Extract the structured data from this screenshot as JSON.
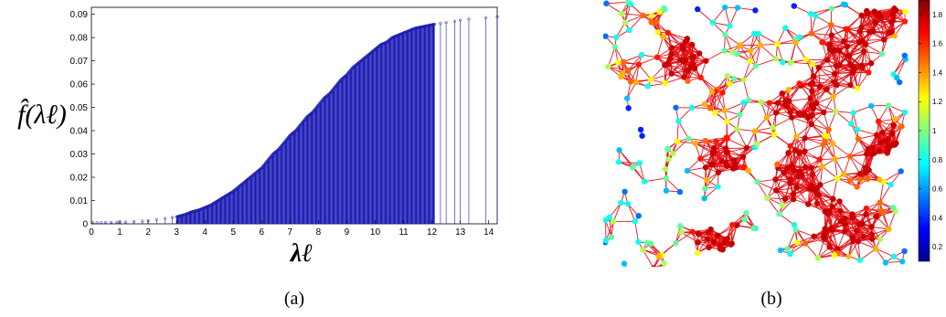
{
  "panels": [
    {
      "caption": "(a)"
    },
    {
      "caption": "(b)"
    }
  ],
  "chart_data": [
    {
      "type": "stem",
      "title": "",
      "xlabel": "λℓ",
      "ylabel": "f̂(λℓ)",
      "xlim": [
        0,
        14.3
      ],
      "ylim": [
        0,
        0.093
      ],
      "xticks": [
        "0",
        "1",
        "2",
        "3",
        "4",
        "5",
        "6",
        "7",
        "8",
        "9",
        "10",
        "11",
        "12",
        "13",
        "14"
      ],
      "yticks": [
        "0",
        "0.01",
        "0.02",
        "0.03",
        "0.04",
        "0.05",
        "0.06",
        "0.07",
        "0.08",
        "0.09"
      ],
      "grid": false,
      "legend": "none",
      "color": "#1a1ab3",
      "series": [
        {
          "x": [
            0,
            0.3,
            0.6,
            0.9,
            1.2,
            1.5,
            1.8,
            2.1,
            2.4,
            2.7,
            3.0,
            3.3,
            3.5,
            3.8,
            4.0,
            4.2,
            4.4,
            4.6,
            4.8,
            5.0,
            5.2,
            5.4,
            5.6,
            5.8,
            6.0,
            6.2,
            6.4,
            6.6,
            6.8,
            7.0,
            7.2,
            7.4,
            7.6,
            7.8,
            8.0,
            8.2,
            8.4,
            8.6,
            8.8,
            9.0,
            9.2,
            9.4,
            9.6,
            9.8,
            10.0,
            10.2,
            10.4,
            10.6,
            10.8,
            11.0,
            11.2,
            11.4,
            11.6,
            11.8,
            12.0,
            12.2,
            12.5,
            12.8,
            13.0,
            13.3,
            13.9,
            14.3
          ],
          "y": [
            0.0005,
            0.0005,
            0.0006,
            0.0007,
            0.0008,
            0.001,
            0.0012,
            0.0015,
            0.002,
            0.0025,
            0.003,
            0.004,
            0.005,
            0.006,
            0.007,
            0.008,
            0.0095,
            0.011,
            0.0125,
            0.014,
            0.016,
            0.018,
            0.02,
            0.022,
            0.024,
            0.027,
            0.03,
            0.032,
            0.035,
            0.038,
            0.04,
            0.043,
            0.046,
            0.048,
            0.051,
            0.054,
            0.056,
            0.059,
            0.062,
            0.064,
            0.067,
            0.069,
            0.071,
            0.073,
            0.075,
            0.077,
            0.078,
            0.08,
            0.081,
            0.082,
            0.083,
            0.084,
            0.0845,
            0.085,
            0.0855,
            0.086,
            0.0865,
            0.087,
            0.0875,
            0.088,
            0.0885,
            0.0889
          ]
        }
      ]
    },
    {
      "type": "graph",
      "title": "",
      "colorbar": {
        "range": [
          0.1,
          1.9
        ],
        "ticks": [
          "0.2",
          "0.4",
          "0.6",
          "0.8",
          "1",
          "1.2",
          "1.4",
          "1.6",
          "1.8"
        ]
      }
    }
  ]
}
